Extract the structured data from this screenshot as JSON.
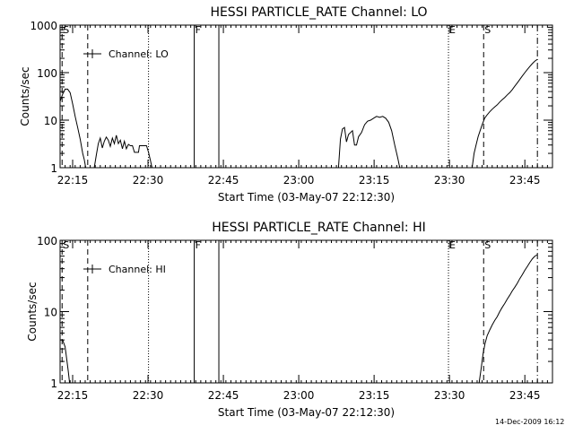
{
  "footer": {
    "timestamp": "14-Dec-2009 16:12"
  },
  "chart_data": [
    {
      "type": "line",
      "title": "HESSI PARTICLE_RATE Channel: LO",
      "xlabel": "Start Time (03-May-07 22:12:30)",
      "ylabel": "Counts/sec",
      "x_unit": "minutes after 22:12:30",
      "xlim": [
        0,
        98
      ],
      "ylim": [
        1,
        1000
      ],
      "yscale": "log",
      "x_ticks": [
        {
          "x": 2.5,
          "label": "22:15"
        },
        {
          "x": 17.5,
          "label": "22:30"
        },
        {
          "x": 32.5,
          "label": "22:45"
        },
        {
          "x": 47.5,
          "label": "23:00"
        },
        {
          "x": 62.5,
          "label": "23:15"
        },
        {
          "x": 77.5,
          "label": "23:30"
        },
        {
          "x": 92.5,
          "label": "23:45"
        }
      ],
      "y_ticks": [
        {
          "y": 1,
          "label": "1"
        },
        {
          "y": 10,
          "label": "10"
        },
        {
          "y": 100,
          "label": "100"
        },
        {
          "y": 1000,
          "label": "1000"
        }
      ],
      "legend": {
        "label": "Channel: LO",
        "position": "top-left"
      },
      "markers": [
        {
          "x": 0.4,
          "style": "dashed",
          "label": "S"
        },
        {
          "x": 5.5,
          "style": "dashed",
          "label": ""
        },
        {
          "x": 17.6,
          "style": "dotted",
          "label": ""
        },
        {
          "x": 26.7,
          "style": "solid",
          "label": "F"
        },
        {
          "x": 31.6,
          "style": "solid",
          "label": ""
        },
        {
          "x": 77.3,
          "style": "dotted",
          "label": "E"
        },
        {
          "x": 84.3,
          "style": "dashed",
          "label": "S"
        },
        {
          "x": 95.0,
          "style": "dashdot",
          "label": ""
        }
      ],
      "series": [
        {
          "segments": [
            [
              [
                0.0,
                25
              ],
              [
                0.5,
                35
              ],
              [
                1.0,
                45
              ],
              [
                1.5,
                45
              ],
              [
                2.0,
                38
              ],
              [
                2.5,
                22
              ],
              [
                3.0,
                12
              ],
              [
                3.5,
                7
              ],
              [
                4.0,
                4
              ],
              [
                4.5,
                2
              ],
              [
                4.8,
                1.5
              ],
              [
                5.1,
                1
              ]
            ],
            [
              [
                6.8,
                1
              ],
              [
                7.2,
                1.8
              ],
              [
                7.6,
                3.2
              ],
              [
                8.0,
                4.2
              ],
              [
                8.4,
                2.6
              ],
              [
                8.8,
                3.6
              ],
              [
                9.2,
                4.4
              ],
              [
                9.6,
                3.8
              ],
              [
                10.0,
                2.8
              ],
              [
                10.4,
                4.2
              ],
              [
                10.8,
                3.2
              ],
              [
                11.2,
                4.8
              ],
              [
                11.6,
                3.2
              ],
              [
                12.0,
                3.8
              ],
              [
                12.4,
                2.5
              ],
              [
                12.8,
                3.6
              ],
              [
                13.2,
                2.5
              ],
              [
                13.6,
                3.1
              ],
              [
                14.0,
                2.9
              ],
              [
                14.4,
                2.9
              ],
              [
                14.8,
                2.1
              ],
              [
                15.2,
                2.1
              ],
              [
                15.6,
                2.1
              ],
              [
                15.8,
                2.9
              ],
              [
                16.5,
                2.9
              ],
              [
                17.2,
                2.9
              ],
              [
                17.6,
                2.1
              ],
              [
                18.0,
                1.4
              ],
              [
                18.3,
                1
              ]
            ],
            [
              [
                55.4,
                1
              ],
              [
                55.8,
                4
              ],
              [
                56.2,
                6.5
              ],
              [
                56.6,
                7
              ],
              [
                57.0,
                3.5
              ],
              [
                57.4,
                5
              ],
              [
                57.8,
                5.5
              ],
              [
                58.2,
                6
              ],
              [
                58.6,
                3
              ],
              [
                59.0,
                3
              ],
              [
                59.4,
                4.5
              ],
              [
                60.0,
                5.5
              ],
              [
                60.6,
                8
              ],
              [
                61.2,
                9.5
              ],
              [
                61.8,
                10
              ],
              [
                62.4,
                11
              ],
              [
                63.0,
                12
              ],
              [
                63.6,
                11.5
              ],
              [
                64.2,
                12
              ],
              [
                64.8,
                11
              ],
              [
                65.4,
                9
              ],
              [
                66.0,
                6
              ],
              [
                66.6,
                3
              ],
              [
                67.2,
                1.6
              ],
              [
                67.6,
                1
              ]
            ],
            [
              [
                82.0,
                1
              ],
              [
                82.4,
                2
              ],
              [
                82.8,
                3
              ],
              [
                83.2,
                4.5
              ],
              [
                83.6,
                6
              ],
              [
                84.0,
                8
              ],
              [
                84.5,
                11
              ],
              [
                85.0,
                13
              ],
              [
                85.5,
                15
              ],
              [
                86.0,
                17
              ],
              [
                86.5,
                19
              ],
              [
                87.0,
                21
              ],
              [
                87.5,
                24
              ],
              [
                88.0,
                27
              ],
              [
                88.5,
                30
              ],
              [
                89.0,
                34
              ],
              [
                89.5,
                38
              ],
              [
                90.0,
                44
              ],
              [
                90.5,
                52
              ],
              [
                91.0,
                61
              ],
              [
                91.5,
                72
              ],
              [
                92.0,
                85
              ],
              [
                92.5,
                100
              ],
              [
                93.0,
                117
              ],
              [
                93.5,
                135
              ],
              [
                94.0,
                155
              ],
              [
                94.5,
                175
              ],
              [
                95.0,
                190
              ]
            ]
          ]
        }
      ]
    },
    {
      "type": "line",
      "title": "HESSI PARTICLE_RATE Channel: HI",
      "xlabel": "Start Time (03-May-07 22:12:30)",
      "ylabel": "Counts/sec",
      "x_unit": "minutes after 22:12:30",
      "xlim": [
        0,
        98
      ],
      "ylim": [
        1,
        100
      ],
      "yscale": "log",
      "x_ticks": [
        {
          "x": 2.5,
          "label": "22:15"
        },
        {
          "x": 17.5,
          "label": "22:30"
        },
        {
          "x": 32.5,
          "label": "22:45"
        },
        {
          "x": 47.5,
          "label": "23:00"
        },
        {
          "x": 62.5,
          "label": "23:15"
        },
        {
          "x": 77.5,
          "label": "23:30"
        },
        {
          "x": 92.5,
          "label": "23:45"
        }
      ],
      "y_ticks": [
        {
          "y": 1,
          "label": "1"
        },
        {
          "y": 10,
          "label": "10"
        },
        {
          "y": 100,
          "label": "100"
        }
      ],
      "legend": {
        "label": "Channel: HI",
        "position": "top-left"
      },
      "markers": [
        {
          "x": 0.4,
          "style": "dashed",
          "label": "S"
        },
        {
          "x": 5.5,
          "style": "dashed",
          "label": ""
        },
        {
          "x": 17.6,
          "style": "dotted",
          "label": ""
        },
        {
          "x": 26.7,
          "style": "solid",
          "label": "F"
        },
        {
          "x": 31.6,
          "style": "solid",
          "label": ""
        },
        {
          "x": 77.3,
          "style": "dotted",
          "label": "E"
        },
        {
          "x": 84.3,
          "style": "dashed",
          "label": "S"
        },
        {
          "x": 95.0,
          "style": "dashdot",
          "label": ""
        }
      ],
      "series": [
        {
          "segments": [
            [
              [
                0.0,
                4
              ],
              [
                0.5,
                4
              ],
              [
                1.0,
                3.2
              ],
              [
                1.3,
                2.2
              ],
              [
                1.6,
                1.5
              ],
              [
                1.9,
                1
              ]
            ],
            [
              [
                83.4,
                1
              ],
              [
                83.8,
                1.6
              ],
              [
                84.2,
                2.6
              ],
              [
                84.6,
                3.6
              ],
              [
                85.0,
                4.6
              ],
              [
                85.5,
                5.5
              ],
              [
                86.0,
                6.5
              ],
              [
                86.5,
                7.5
              ],
              [
                87.0,
                8.5
              ],
              [
                87.5,
                10
              ],
              [
                88.0,
                11.5
              ],
              [
                88.5,
                13
              ],
              [
                89.0,
                15
              ],
              [
                89.5,
                17
              ],
              [
                90.0,
                19.5
              ],
              [
                90.5,
                22
              ],
              [
                91.0,
                25
              ],
              [
                91.5,
                29
              ],
              [
                92.0,
                33
              ],
              [
                92.5,
                38
              ],
              [
                93.0,
                43
              ],
              [
                93.5,
                49
              ],
              [
                94.0,
                55
              ],
              [
                94.5,
                60
              ],
              [
                95.0,
                63
              ]
            ]
          ]
        }
      ]
    }
  ]
}
